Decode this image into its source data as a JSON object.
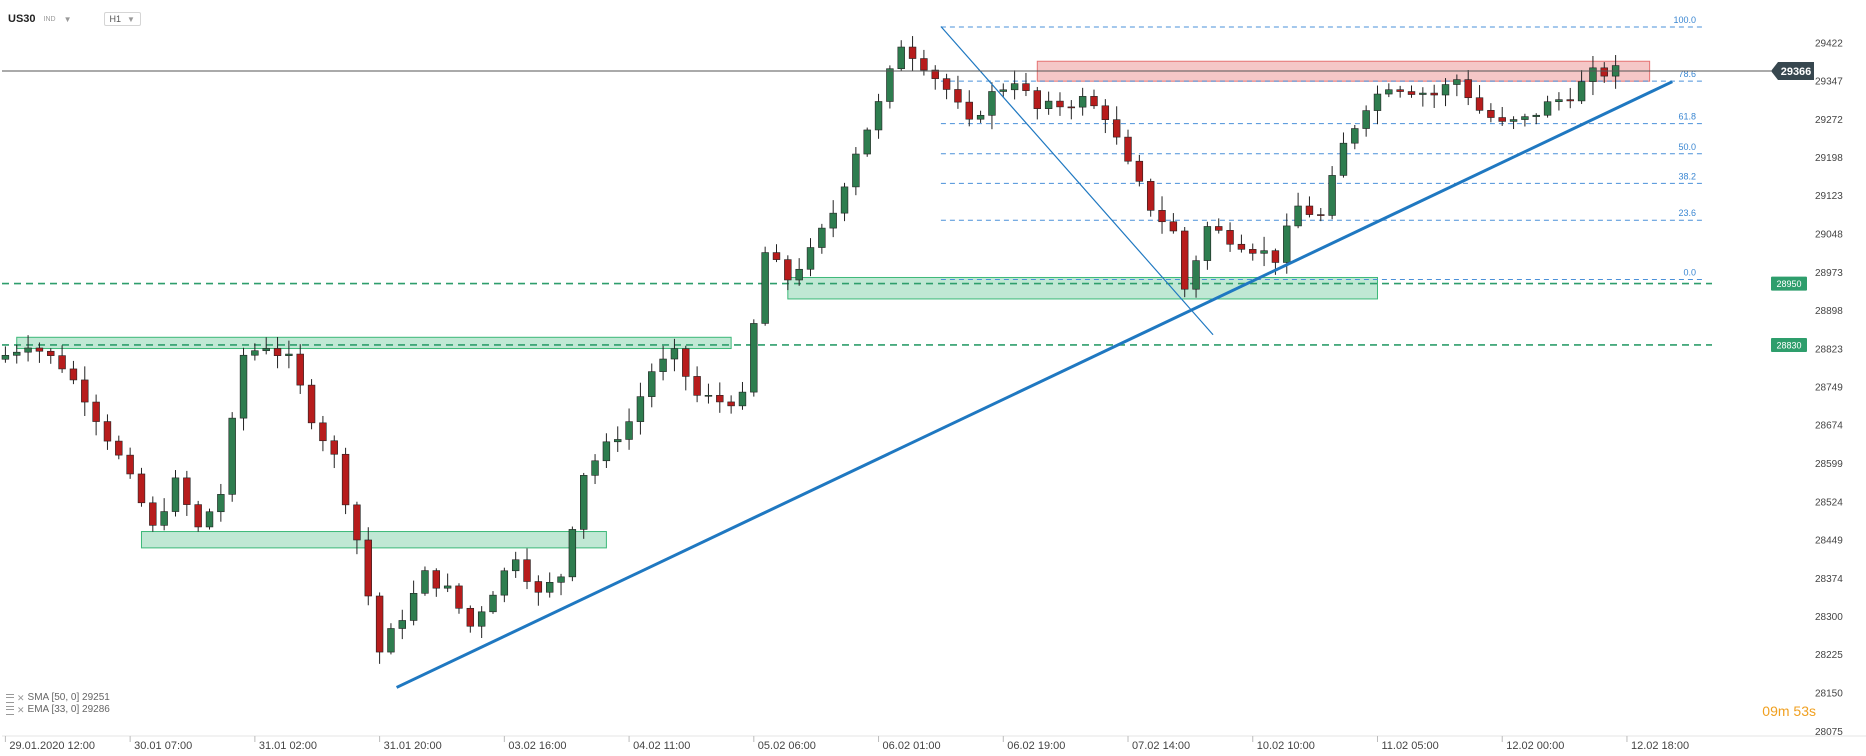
{
  "header": {
    "symbol": "US30",
    "symbol_type": "IND",
    "timeframe": "H1"
  },
  "indicators": [
    {
      "label": "SMA [50, 0] 29251"
    },
    {
      "label": "EMA [33, 0] 29286"
    }
  ],
  "timer": {
    "value": "09m 53s"
  },
  "colors": {
    "bull": "#2e7d4f",
    "bear": "#b71c1c",
    "trend": "#1f78c1",
    "zone_green": "#3cb878",
    "zone_red": "#e57373",
    "price_tag": "#37474f",
    "label_green": "#2e9e6c",
    "timer": "#f0a020"
  },
  "chart_data": {
    "type": "candlestick",
    "title": "",
    "xlabel": "",
    "ylabel": "",
    "ylim": [
      28065,
      29497
    ],
    "x_range": [
      -0.3,
      150.5
    ],
    "y_ticks": [
      29422,
      29347,
      29272,
      29198,
      29123,
      29048,
      28973,
      28898,
      28823,
      28749,
      28674,
      28599,
      28524,
      28449,
      28374,
      28300,
      28225,
      28150,
      28075
    ],
    "x_ticks": [
      {
        "i": 0,
        "label": "29.01.2020 12:00"
      },
      {
        "i": 11,
        "label": "30.01 07:00"
      },
      {
        "i": 22,
        "label": "31.01 02:00"
      },
      {
        "i": 33,
        "label": "31.01 20:00"
      },
      {
        "i": 44,
        "label": "03.02 16:00"
      },
      {
        "i": 55,
        "label": "04.02 11:00"
      },
      {
        "i": 66,
        "label": "05.02 06:00"
      },
      {
        "i": 77,
        "label": "06.02 01:00"
      },
      {
        "i": 88,
        "label": "06.02 19:00"
      },
      {
        "i": 99,
        "label": "07.02 14:00"
      },
      {
        "i": 110,
        "label": "10.02 10:00"
      },
      {
        "i": 121,
        "label": "11.02 05:00"
      },
      {
        "i": 132,
        "label": "12.02 00:00"
      },
      {
        "i": 143,
        "label": "12.02 18:00"
      }
    ],
    "anchors": [
      [
        0,
        28810
      ],
      [
        2,
        28835
      ],
      [
        5,
        28790
      ],
      [
        7,
        28730
      ],
      [
        10,
        28610
      ],
      [
        12,
        28520
      ],
      [
        13,
        28470
      ],
      [
        15,
        28560
      ],
      [
        17,
        28470
      ],
      [
        19,
        28540
      ],
      [
        21,
        28810
      ],
      [
        23,
        28830
      ],
      [
        25,
        28800
      ],
      [
        27,
        28690
      ],
      [
        29,
        28610
      ],
      [
        31,
        28450
      ],
      [
        33,
        28230
      ],
      [
        35,
        28300
      ],
      [
        37,
        28380
      ],
      [
        39,
        28350
      ],
      [
        41,
        28280
      ],
      [
        43,
        28350
      ],
      [
        45,
        28420
      ],
      [
        47,
        28340
      ],
      [
        49,
        28380
      ],
      [
        51,
        28580
      ],
      [
        53,
        28630
      ],
      [
        55,
        28680
      ],
      [
        57,
        28780
      ],
      [
        59,
        28810
      ],
      [
        61,
        28730
      ],
      [
        63,
        28720
      ],
      [
        65,
        28725
      ],
      [
        67,
        29010
      ],
      [
        69,
        28960
      ],
      [
        71,
        29010
      ],
      [
        73,
        29090
      ],
      [
        75,
        29210
      ],
      [
        77,
        29300
      ],
      [
        79,
        29420
      ],
      [
        81,
        29380
      ],
      [
        83,
        29330
      ],
      [
        85,
        29260
      ],
      [
        87,
        29320
      ],
      [
        89,
        29350
      ],
      [
        91,
        29290
      ],
      [
        93,
        29300
      ],
      [
        95,
        29310
      ],
      [
        97,
        29280
      ],
      [
        99,
        29180
      ],
      [
        101,
        29100
      ],
      [
        103,
        29050
      ],
      [
        104,
        28940
      ],
      [
        106,
        29060
      ],
      [
        108,
        29040
      ],
      [
        110,
        29020
      ],
      [
        112,
        29000
      ],
      [
        114,
        29100
      ],
      [
        116,
        29080
      ],
      [
        118,
        29220
      ],
      [
        120,
        29300
      ],
      [
        122,
        29340
      ],
      [
        124,
        29330
      ],
      [
        126,
        29320
      ],
      [
        128,
        29350
      ],
      [
        130,
        29290
      ],
      [
        132,
        29260
      ],
      [
        134,
        29270
      ],
      [
        136,
        29300
      ],
      [
        138,
        29320
      ],
      [
        140,
        29360
      ],
      [
        142,
        29366
      ]
    ],
    "fibonacci": {
      "levels": [
        {
          "label": "100.0",
          "value": 29452
        },
        {
          "label": "78.6",
          "value": 29346
        },
        {
          "label": "61.8",
          "value": 29263
        },
        {
          "label": "50.0",
          "value": 29204
        },
        {
          "label": "38.2",
          "value": 29146
        },
        {
          "label": "23.6",
          "value": 29074
        },
        {
          "label": "0.0",
          "value": 28958
        }
      ]
    },
    "current_price": 29366,
    "support_levels": [
      {
        "label": "28950",
        "value": 28950
      },
      {
        "label": "28830",
        "value": 28830
      }
    ],
    "zones": [
      {
        "color": "green",
        "i0": 1,
        "i1": 64,
        "y0": 28823,
        "y1": 28845
      },
      {
        "color": "green",
        "i0": 12,
        "i1": 53,
        "y0": 28433,
        "y1": 28465
      },
      {
        "color": "green",
        "i0": 69,
        "i1": 121,
        "y0": 28920,
        "y1": 28962
      },
      {
        "color": "red",
        "i0": 91,
        "i1": 145,
        "y0": 29346,
        "y1": 29385
      }
    ],
    "trendlines": [
      {
        "from": [
          34.5,
          28160
        ],
        "to": [
          147,
          29345
        ]
      },
      {
        "from": [
          82.5,
          29453
        ],
        "to": [
          106.5,
          28850
        ]
      }
    ]
  }
}
